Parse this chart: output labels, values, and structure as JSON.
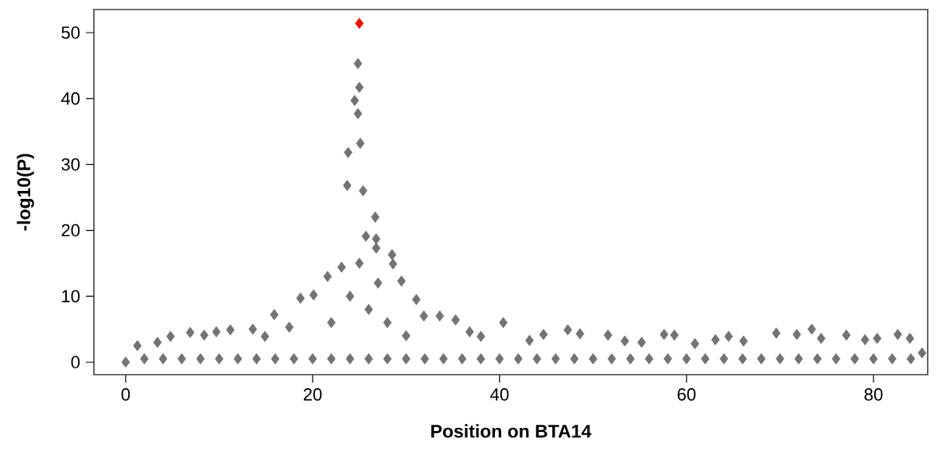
{
  "chart_data": {
    "type": "scatter",
    "xlabel": "Position on BTA14",
    "ylabel": "-log10(P)",
    "xlim": [
      -3.4,
      85.8
    ],
    "ylim": [
      -1.9,
      53.5
    ],
    "xticks": [
      0,
      20,
      40,
      60,
      80
    ],
    "yticks": [
      0,
      10,
      20,
      30,
      40,
      50
    ],
    "marker": "diamond",
    "series": [
      {
        "color": "#737373",
        "x": [
          0,
          1.25,
          3.4,
          4.8,
          6.9,
          8.4,
          9.7,
          11.2,
          13.6,
          14.9,
          15.9,
          17.5,
          18.7,
          20.1,
          21.6,
          23.1,
          23.7,
          23.8,
          24.5,
          24.85,
          25.0,
          24.85,
          25.1,
          25.4,
          26.7,
          25.7,
          26.8,
          26.8,
          28.5,
          28.6,
          29.5,
          31.1,
          31.9,
          33.6,
          35.3,
          36.8,
          38.0,
          40.4,
          43.2,
          44.7,
          47.3,
          48.6,
          51.6,
          53.4,
          55.2,
          57.6,
          58.7,
          60.9,
          63.1,
          64.5,
          66.1,
          69.6,
          71.8,
          73.4,
          74.4,
          77.1,
          79.1,
          80.4,
          82.6,
          83.9,
          85.2,
          2,
          4,
          6,
          8,
          10,
          12,
          14,
          16,
          18,
          20,
          22,
          24,
          26,
          28,
          30,
          32,
          34,
          36,
          38,
          40,
          42,
          44,
          46,
          48,
          50,
          52,
          54,
          56,
          58,
          60,
          62,
          64,
          66,
          68,
          70,
          72,
          74,
          76,
          78,
          80,
          82,
          84,
          22,
          24,
          26,
          28,
          30,
          25,
          27
        ],
        "values": [
          0,
          2.5,
          3.0,
          3.9,
          4.5,
          4.1,
          4.6,
          4.9,
          5.0,
          3.9,
          7.2,
          5.3,
          9.7,
          10.2,
          13.0,
          14.4,
          26.8,
          31.8,
          39.7,
          45.3,
          41.7,
          37.7,
          33.2,
          26.0,
          22.0,
          19.1,
          18.7,
          17.3,
          16.3,
          14.9,
          12.3,
          9.5,
          7.0,
          7.0,
          6.4,
          4.6,
          3.9,
          6.0,
          3.3,
          4.2,
          4.9,
          4.3,
          4.1,
          3.2,
          3.0,
          4.2,
          4.1,
          2.8,
          3.4,
          3.9,
          3.2,
          4.4,
          4.2,
          5.0,
          3.6,
          4.1,
          3.4,
          3.6,
          4.2,
          3.6,
          1.4,
          0.5,
          0.5,
          0.5,
          0.5,
          0.5,
          0.5,
          0.5,
          0.5,
          0.5,
          0.5,
          0.5,
          0.5,
          0.5,
          0.5,
          0.5,
          0.5,
          0.5,
          0.5,
          0.5,
          0.5,
          0.5,
          0.5,
          0.5,
          0.5,
          0.5,
          0.5,
          0.5,
          0.5,
          0.5,
          0.5,
          0.5,
          0.5,
          0.5,
          0.5,
          0.5,
          0.5,
          0.5,
          0.5,
          0.5,
          0.5,
          0.5,
          0.5,
          6,
          10,
          8,
          6,
          4,
          15,
          12
        ]
      },
      {
        "color": "#e8150a",
        "x": [
          25.0
        ],
        "values": [
          51.4
        ]
      }
    ]
  }
}
